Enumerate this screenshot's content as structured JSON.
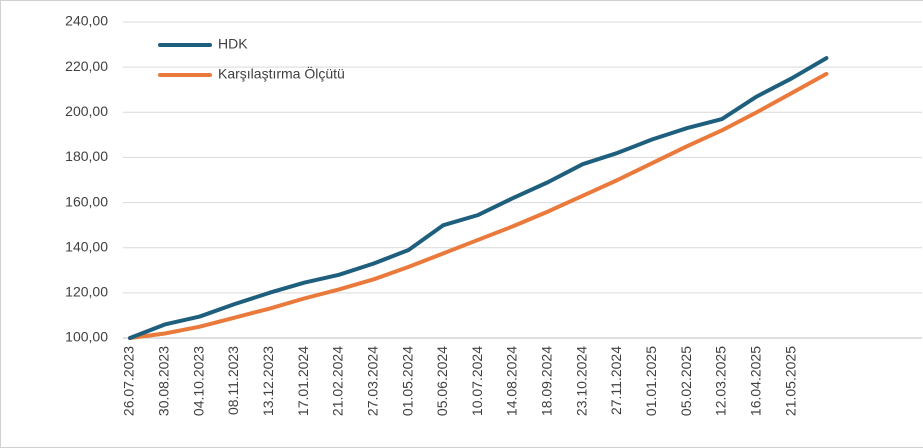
{
  "chart_data": {
    "type": "line",
    "categories": [
      "26.07.2023",
      "30.08.2023",
      "04.10.2023",
      "08.11.2023",
      "13.12.2023",
      "17.01.2024",
      "21.02.2024",
      "27.03.2024",
      "01.05.2024",
      "05.06.2024",
      "10.07.2024",
      "14.08.2024",
      "18.09.2024",
      "23.10.2024",
      "27.11.2024",
      "01.01.2025",
      "05.02.2025",
      "12.03.2025",
      "16.04.2025",
      "21.05.2025",
      null
    ],
    "series": [
      {
        "name": "HDK",
        "color": "#1f5f7e",
        "values": [
          100,
          106,
          109.5,
          115,
          120,
          124.5,
          128,
          133,
          139,
          150,
          154.5,
          162,
          169,
          177,
          182,
          188,
          193,
          197,
          207,
          215,
          224
        ]
      },
      {
        "name": "Karşılaştırma Ölçütü",
        "color": "#ea7a3c",
        "values": [
          100,
          102,
          105,
          109,
          113,
          117.5,
          121.5,
          126,
          131.5,
          137.5,
          143.5,
          149.5,
          156,
          163,
          170,
          177.5,
          185,
          192,
          200,
          208.5,
          217
        ]
      }
    ],
    "ylim": [
      100,
      240
    ],
    "yticks": [
      {
        "value": 100,
        "label": "100,00"
      },
      {
        "value": 120,
        "label": "120,00"
      },
      {
        "value": 140,
        "label": "140,00"
      },
      {
        "value": 160,
        "label": "160,00"
      },
      {
        "value": 180,
        "label": "180,00"
      },
      {
        "value": 200,
        "label": "200,00"
      },
      {
        "value": 220,
        "label": "220,00"
      },
      {
        "value": 240,
        "label": "240,00"
      }
    ],
    "grid": true,
    "legend": "top-left"
  }
}
